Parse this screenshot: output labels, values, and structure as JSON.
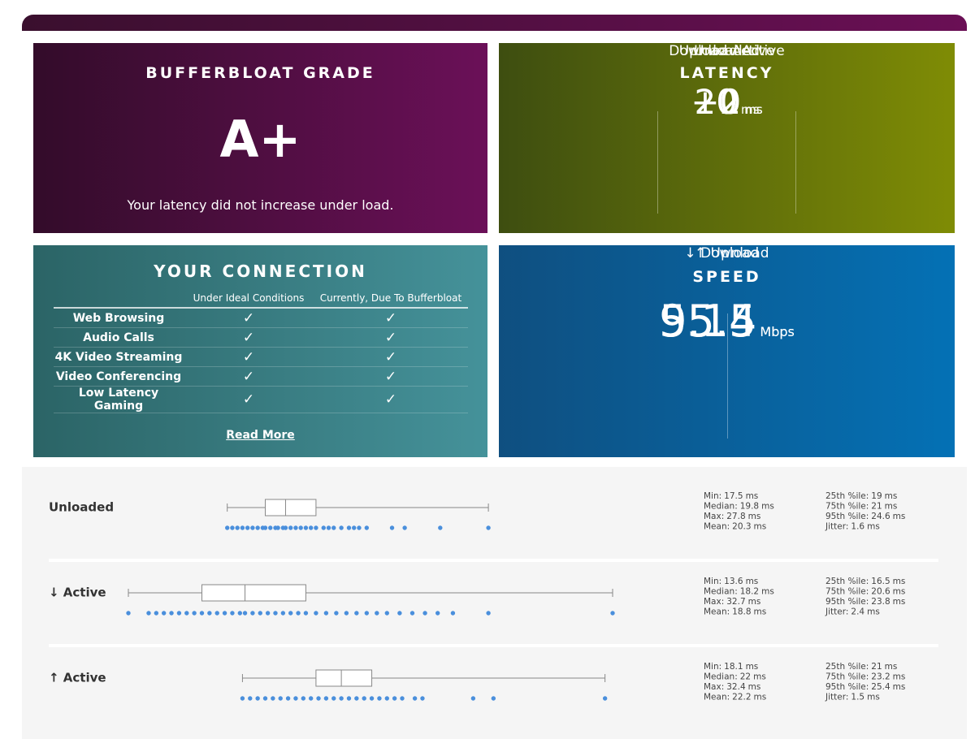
{
  "grade": {
    "title": "BUFFERBLOAT GRADE",
    "grade": "A+",
    "message": "Your latency did not increase under load."
  },
  "latency": {
    "title": "LATENCY",
    "columns": [
      {
        "label": "Unloaded",
        "value": "20",
        "unit": "ms"
      },
      {
        "label": "Download Active",
        "value": "+0",
        "unit": "ms"
      },
      {
        "label": "Upload Active",
        "value": "+2",
        "unit": "ms"
      }
    ]
  },
  "connection": {
    "title": "YOUR CONNECTION",
    "columns": [
      "Under Ideal Conditions",
      "Currently, Due To Bufferbloat"
    ],
    "rows": [
      {
        "name": "Web Browsing",
        "ideal": "✓",
        "current": "✓"
      },
      {
        "name": "Audio Calls",
        "ideal": "✓",
        "current": "✓"
      },
      {
        "name": "4K Video Streaming",
        "ideal": "✓",
        "current": "✓"
      },
      {
        "name": "Video Conferencing",
        "ideal": "✓",
        "current": "✓"
      },
      {
        "name": "Low Latency Gaming",
        "ideal": "✓",
        "current": "✓"
      }
    ],
    "link": "Read More"
  },
  "speed": {
    "title": "SPEED",
    "columns": [
      {
        "label": "↓ Download",
        "value": "55.5",
        "unit": "Mbps"
      },
      {
        "label": "↑ Upload",
        "value": "9.14",
        "unit": "Mbps"
      }
    ]
  },
  "latency_plots": [
    {
      "label": "Unloaded",
      "stats": {
        "min": {
          "label": "Min:",
          "value": 17.5,
          "unit": "ms"
        },
        "median": {
          "label": "Median:",
          "value": 19.8,
          "unit": "ms"
        },
        "max": {
          "label": "Max:",
          "value": 27.8,
          "unit": "ms"
        },
        "mean": {
          "label": "Mean:",
          "value": 20.3,
          "unit": "ms"
        },
        "p25": {
          "label": "25th %ile:",
          "value": 19,
          "unit": "ms"
        },
        "p75": {
          "label": "75th %ile:",
          "value": 21,
          "unit": "ms"
        },
        "p95": {
          "label": "95th %ile:",
          "value": 24.6,
          "unit": "ms"
        },
        "jitter": {
          "label": "Jitter:",
          "value": 1.6,
          "unit": "ms"
        }
      },
      "samples": [
        17.5,
        17.7,
        17.9,
        18.1,
        18.3,
        18.5,
        18.7,
        18.9,
        19.0,
        19.2,
        19.4,
        19.5,
        19.7,
        19.8,
        20.0,
        20.2,
        20.4,
        20.6,
        20.8,
        21.0,
        21.3,
        21.5,
        21.7,
        22.0,
        22.3,
        22.5,
        22.7,
        23.0,
        24.0,
        24.5,
        25.9,
        27.8
      ]
    },
    {
      "label": "↓ Active",
      "stats": {
        "min": {
          "label": "Min:",
          "value": 13.6,
          "unit": "ms"
        },
        "median": {
          "label": "Median:",
          "value": 18.2,
          "unit": "ms"
        },
        "max": {
          "label": "Max:",
          "value": 32.7,
          "unit": "ms"
        },
        "mean": {
          "label": "Mean:",
          "value": 18.8,
          "unit": "ms"
        },
        "p25": {
          "label": "25th %ile:",
          "value": 16.5,
          "unit": "ms"
        },
        "p75": {
          "label": "75th %ile:",
          "value": 20.6,
          "unit": "ms"
        },
        "p95": {
          "label": "95th %ile:",
          "value": 23.8,
          "unit": "ms"
        },
        "jitter": {
          "label": "Jitter:",
          "value": 2.4,
          "unit": "ms"
        }
      },
      "samples": [
        13.6,
        14.4,
        14.7,
        15.0,
        15.3,
        15.6,
        15.9,
        16.2,
        16.5,
        16.8,
        17.1,
        17.4,
        17.7,
        18.0,
        18.2,
        18.5,
        18.8,
        19.1,
        19.4,
        19.7,
        20.0,
        20.3,
        20.6,
        21.0,
        21.4,
        21.8,
        22.2,
        22.6,
        23.0,
        23.4,
        23.8,
        24.3,
        24.8,
        25.3,
        25.8,
        26.4,
        27.8,
        32.7
      ]
    },
    {
      "label": "↑ Active",
      "stats": {
        "min": {
          "label": "Min:",
          "value": 18.1,
          "unit": "ms"
        },
        "median": {
          "label": "Median:",
          "value": 22,
          "unit": "ms"
        },
        "max": {
          "label": "Max:",
          "value": 32.4,
          "unit": "ms"
        },
        "mean": {
          "label": "Mean:",
          "value": 22.2,
          "unit": "ms"
        },
        "p25": {
          "label": "25th %ile:",
          "value": 21,
          "unit": "ms"
        },
        "p75": {
          "label": "75th %ile:",
          "value": 23.2,
          "unit": "ms"
        },
        "p95": {
          "label": "95th %ile:",
          "value": 25.4,
          "unit": "ms"
        },
        "jitter": {
          "label": "Jitter:",
          "value": 1.5,
          "unit": "ms"
        }
      },
      "samples": [
        18.1,
        18.4,
        18.7,
        19.0,
        19.3,
        19.6,
        19.9,
        20.2,
        20.5,
        20.8,
        21.1,
        21.4,
        21.7,
        22.0,
        22.3,
        22.6,
        22.9,
        23.2,
        23.5,
        23.8,
        24.1,
        24.4,
        24.9,
        25.2,
        27.2,
        28.0,
        32.4
      ]
    }
  ]
}
